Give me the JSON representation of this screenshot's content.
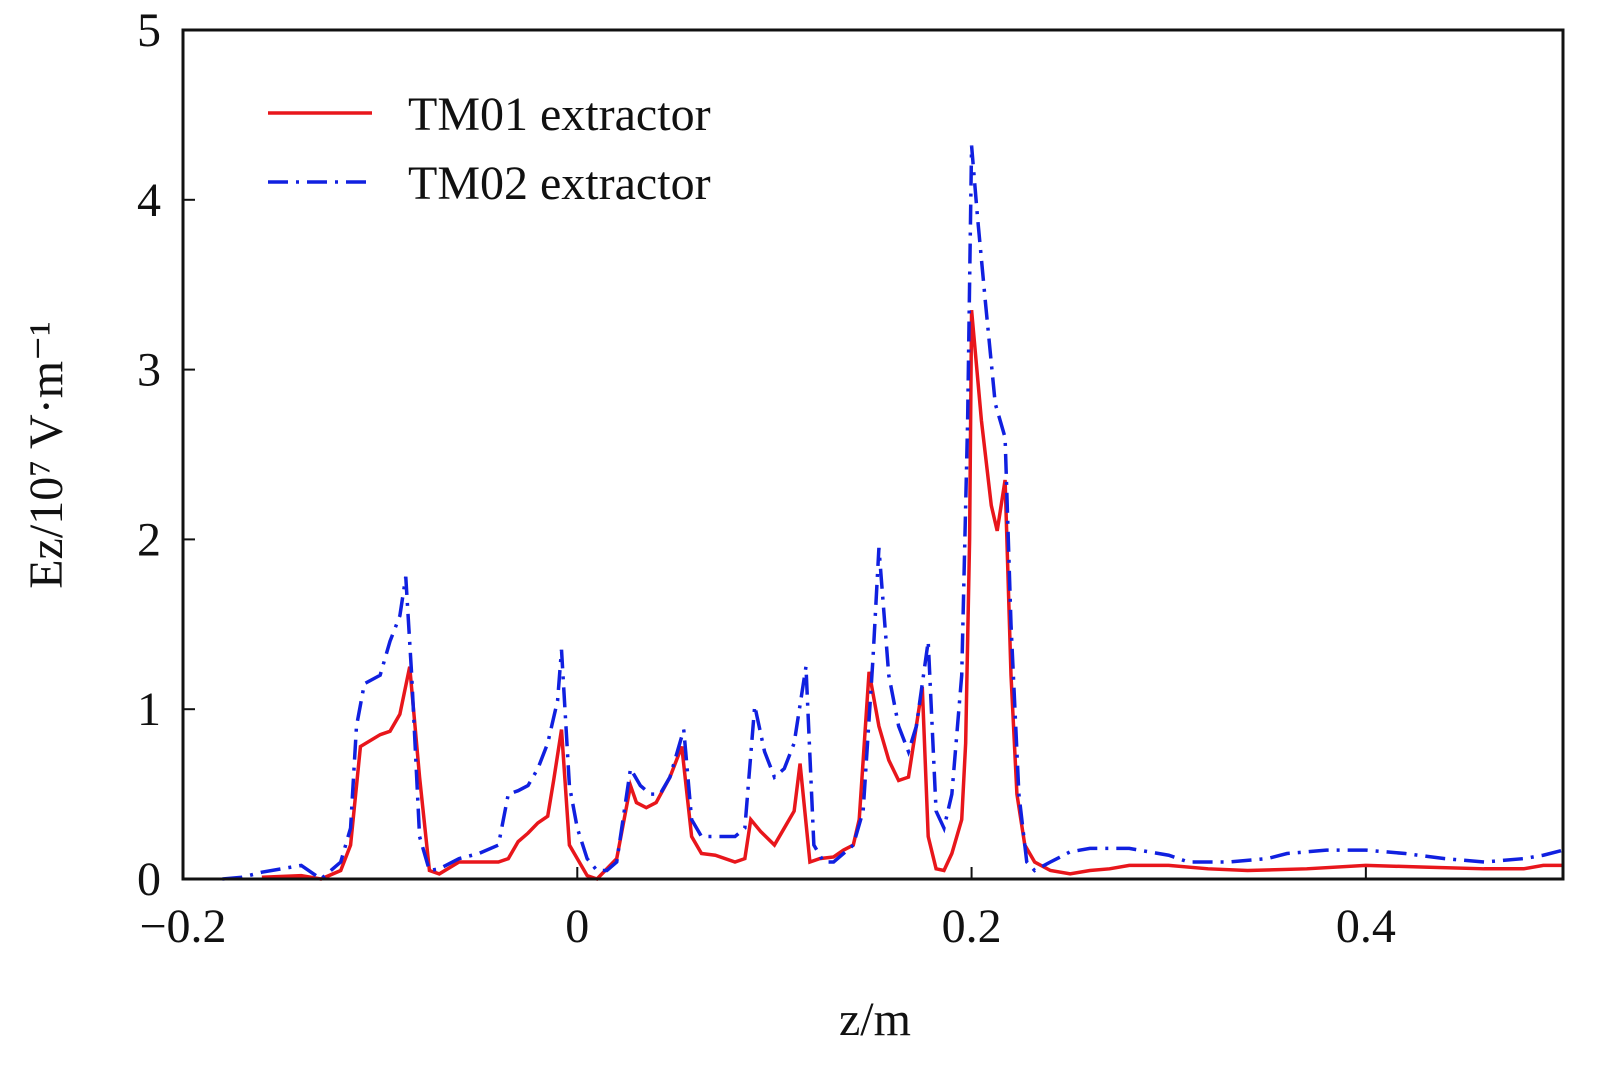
{
  "chart_data": {
    "type": "line",
    "x_label": "z/m",
    "y_label": "Ez/10⁷ V·m⁻¹",
    "xlim": [
      -0.2,
      0.5
    ],
    "ylim": [
      0,
      5
    ],
    "xticks": [
      {
        "value": -0.2,
        "label": "−0.2"
      },
      0,
      0.2,
      0.4
    ],
    "yticks": [
      0,
      1,
      2,
      3,
      4,
      5
    ],
    "legend": "upper-left",
    "series": [
      {
        "name": "TM01 extractor",
        "color": "#e8161b",
        "dash": "solid",
        "x": [
          -0.16,
          -0.14,
          -0.13,
          -0.12,
          -0.115,
          -0.11,
          -0.1,
          -0.095,
          -0.09,
          -0.085,
          -0.08,
          -0.075,
          -0.07,
          -0.06,
          -0.05,
          -0.04,
          -0.035,
          -0.03,
          -0.025,
          -0.02,
          -0.015,
          -0.012,
          -0.008,
          -0.004,
          0,
          0.005,
          0.01,
          0.02,
          0.027,
          0.03,
          0.035,
          0.04,
          0.047,
          0.053,
          0.058,
          0.063,
          0.07,
          0.08,
          0.085,
          0.088,
          0.093,
          0.1,
          0.105,
          0.11,
          0.113,
          0.118,
          0.123,
          0.13,
          0.135,
          0.14,
          0.143,
          0.148,
          0.153,
          0.158,
          0.163,
          0.168,
          0.175,
          0.178,
          0.182,
          0.186,
          0.19,
          0.195,
          0.197,
          0.199,
          0.2,
          0.205,
          0.21,
          0.213,
          0.217,
          0.22,
          0.223,
          0.227,
          0.232,
          0.24,
          0.25,
          0.26,
          0.27,
          0.28,
          0.3,
          0.32,
          0.34,
          0.37,
          0.4,
          0.43,
          0.46,
          0.48,
          0.49,
          0.5
        ],
        "values": [
          0.01,
          0.02,
          0.0,
          0.05,
          0.2,
          0.78,
          0.85,
          0.87,
          0.97,
          1.25,
          0.6,
          0.05,
          0.03,
          0.1,
          0.1,
          0.1,
          0.12,
          0.22,
          0.27,
          0.33,
          0.37,
          0.58,
          0.88,
          0.2,
          0.12,
          0.02,
          0.0,
          0.12,
          0.55,
          0.45,
          0.42,
          0.45,
          0.6,
          0.78,
          0.25,
          0.15,
          0.14,
          0.1,
          0.12,
          0.35,
          0.28,
          0.2,
          0.3,
          0.4,
          0.68,
          0.1,
          0.12,
          0.13,
          0.17,
          0.2,
          0.35,
          1.22,
          0.9,
          0.7,
          0.58,
          0.6,
          1.13,
          0.25,
          0.06,
          0.05,
          0.15,
          0.35,
          0.8,
          2.0,
          3.35,
          2.7,
          2.2,
          2.05,
          2.35,
          1.2,
          0.5,
          0.2,
          0.1,
          0.05,
          0.03,
          0.05,
          0.06,
          0.08,
          0.08,
          0.06,
          0.05,
          0.06,
          0.08,
          0.07,
          0.06,
          0.06,
          0.08,
          0.08
        ]
      },
      {
        "name": "TM02 extractor",
        "color": "#1020e0",
        "dash": "dashdot",
        "x": [
          -0.18,
          -0.17,
          -0.16,
          -0.15,
          -0.14,
          -0.13,
          -0.12,
          -0.115,
          -0.112,
          -0.108,
          -0.1,
          -0.095,
          -0.09,
          -0.087,
          -0.084,
          -0.08,
          -0.075,
          -0.07,
          -0.06,
          -0.05,
          -0.04,
          -0.035,
          -0.03,
          -0.025,
          -0.02,
          -0.015,
          -0.01,
          -0.008,
          -0.004,
          0,
          0.005,
          0.01,
          0.015,
          0.02,
          0.027,
          0.032,
          0.037,
          0.042,
          0.047,
          0.054,
          0.058,
          0.063,
          0.07,
          0.08,
          0.085,
          0.09,
          0.095,
          0.1,
          0.105,
          0.11,
          0.116,
          0.12,
          0.125,
          0.13,
          0.14,
          0.145,
          0.15,
          0.153,
          0.158,
          0.163,
          0.168,
          0.172,
          0.178,
          0.182,
          0.186,
          0.19,
          0.195,
          0.198,
          0.2,
          0.203,
          0.207,
          0.212,
          0.217,
          0.22,
          0.224,
          0.228,
          0.232,
          0.24,
          0.25,
          0.26,
          0.28,
          0.3,
          0.31,
          0.33,
          0.35,
          0.36,
          0.38,
          0.4,
          0.42,
          0.44,
          0.46,
          0.48,
          0.49,
          0.5
        ],
        "values": [
          0.0,
          0.01,
          0.04,
          0.06,
          0.08,
          0.0,
          0.1,
          0.3,
          0.9,
          1.15,
          1.2,
          1.4,
          1.55,
          1.78,
          1.2,
          0.25,
          0.05,
          0.06,
          0.12,
          0.15,
          0.2,
          0.5,
          0.52,
          0.55,
          0.65,
          0.8,
          1.05,
          1.35,
          0.55,
          0.3,
          0.12,
          0.05,
          0.05,
          0.1,
          0.65,
          0.55,
          0.5,
          0.5,
          0.6,
          0.88,
          0.35,
          0.25,
          0.25,
          0.25,
          0.3,
          1.02,
          0.75,
          0.6,
          0.65,
          0.8,
          1.25,
          0.2,
          0.1,
          0.1,
          0.2,
          0.4,
          1.3,
          1.95,
          1.2,
          0.9,
          0.75,
          0.9,
          1.4,
          0.4,
          0.3,
          0.5,
          1.2,
          2.7,
          4.32,
          3.9,
          3.4,
          2.8,
          2.6,
          1.5,
          0.5,
          0.1,
          0.05,
          0.1,
          0.16,
          0.18,
          0.18,
          0.14,
          0.1,
          0.1,
          0.12,
          0.15,
          0.17,
          0.17,
          0.15,
          0.12,
          0.1,
          0.12,
          0.14,
          0.17
        ]
      }
    ]
  }
}
